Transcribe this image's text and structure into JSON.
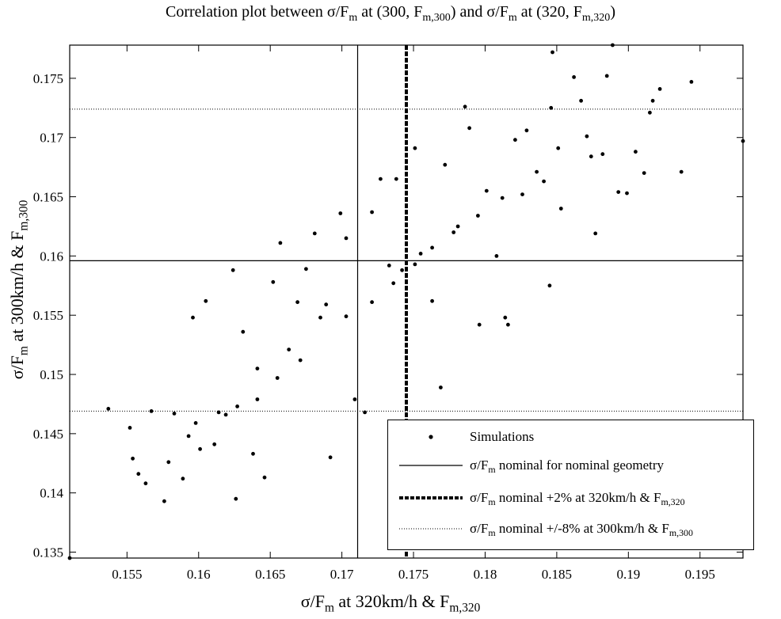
{
  "title": {
    "prefix": "Correlation plot between σ/F",
    "sub1": "m",
    "mid1": " at (300, F",
    "sub2": "m,300",
    "mid2": ") and σ/F",
    "sub3": "m",
    "mid3": " at (320, F",
    "sub4": "m,320",
    "end": ")"
  },
  "xlabel": {
    "a": "σ/F",
    "b": "m",
    "c": " at 320km/h & F",
    "d": "m,320"
  },
  "ylabel": {
    "a": "σ/F",
    "b": "m",
    "c": " at 300km/h & F",
    "d": "m,300"
  },
  "legend": {
    "simulations": "Simulations",
    "nominal": {
      "a": "σ/F",
      "b": "m",
      "c": " nominal for nominal geometry"
    },
    "plus2": {
      "a": "σ/F",
      "b": "m",
      "c": " nominal +2% at 320km/h & F",
      "d": "m,320"
    },
    "pm8": {
      "a": "σ/F",
      "b": "m",
      "c": " nominal +/-8% at 300km/h & F",
      "d": "m,300"
    }
  },
  "chart_data": {
    "type": "scatter",
    "xlim": [
      0.151,
      0.198
    ],
    "ylim": [
      0.1345,
      0.1778
    ],
    "xticks": [
      "0.155",
      "0.16",
      "0.165",
      "0.17",
      "0.175",
      "0.18",
      "0.185",
      "0.19",
      "0.195"
    ],
    "yticks": [
      "0.135",
      "0.14",
      "0.145",
      "0.15",
      "0.155",
      "0.16",
      "0.165",
      "0.17",
      "0.175"
    ],
    "grid": false,
    "legend_position": "bottom-right",
    "reference_lines": {
      "nominal_x": 0.1711,
      "nominal_y": 0.1596,
      "plus2_x": 0.1745,
      "plus8_y": 0.1724,
      "minus8_y": 0.1469
    },
    "series": [
      {
        "name": "Simulations",
        "marker": "dot",
        "color": "#000000",
        "points": [
          [
            0.151,
            0.1345
          ],
          [
            0.1537,
            0.1471
          ],
          [
            0.1552,
            0.1455
          ],
          [
            0.1554,
            0.1429
          ],
          [
            0.1558,
            0.1416
          ],
          [
            0.1563,
            0.1408
          ],
          [
            0.1567,
            0.1469
          ],
          [
            0.1576,
            0.1393
          ],
          [
            0.1579,
            0.1426
          ],
          [
            0.1583,
            0.1467
          ],
          [
            0.1589,
            0.1412
          ],
          [
            0.1593,
            0.1448
          ],
          [
            0.1596,
            0.1548
          ],
          [
            0.1601,
            0.1437
          ],
          [
            0.1605,
            0.1562
          ],
          [
            0.1611,
            0.1441
          ],
          [
            0.1619,
            0.1466
          ],
          [
            0.1624,
            0.1588
          ],
          [
            0.1626,
            0.1395
          ],
          [
            0.1631,
            0.1536
          ],
          [
            0.1638,
            0.1433
          ],
          [
            0.1641,
            0.1505
          ],
          [
            0.1646,
            0.1413
          ],
          [
            0.1652,
            0.1578
          ],
          [
            0.1657,
            0.1611
          ],
          [
            0.1663,
            0.1521
          ],
          [
            0.1669,
            0.1561
          ],
          [
            0.1675,
            0.1589
          ],
          [
            0.1681,
            0.1619
          ],
          [
            0.1689,
            0.1559
          ],
          [
            0.1692,
            0.143
          ],
          [
            0.1699,
            0.1636
          ],
          [
            0.1703,
            0.1615
          ],
          [
            0.1709,
            0.1479
          ],
          [
            0.1716,
            0.1468
          ],
          [
            0.1721,
            0.1637
          ],
          [
            0.1727,
            0.1665
          ],
          [
            0.1733,
            0.1592
          ],
          [
            0.1738,
            0.1665
          ],
          [
            0.1742,
            0.1588
          ],
          [
            0.1751,
            0.1691
          ],
          [
            0.1755,
            0.1602
          ],
          [
            0.1763,
            0.1562
          ],
          [
            0.1769,
            0.1489
          ],
          [
            0.1772,
            0.1677
          ],
          [
            0.1778,
            0.162
          ],
          [
            0.1786,
            0.1726
          ],
          [
            0.1789,
            0.1708
          ],
          [
            0.1796,
            0.1542
          ],
          [
            0.1801,
            0.1655
          ],
          [
            0.1808,
            0.16
          ],
          [
            0.1814,
            0.1548
          ],
          [
            0.1816,
            0.1542
          ],
          [
            0.1821,
            0.1698
          ],
          [
            0.1829,
            0.1706
          ],
          [
            0.1836,
            0.1671
          ],
          [
            0.1841,
            0.1663
          ],
          [
            0.1845,
            0.1575
          ],
          [
            0.1846,
            0.1725
          ],
          [
            0.1847,
            0.1772
          ],
          [
            0.1851,
            0.1691
          ],
          [
            0.1853,
            0.164
          ],
          [
            0.1862,
            0.1751
          ],
          [
            0.1867,
            0.1731
          ],
          [
            0.1871,
            0.1701
          ],
          [
            0.1874,
            0.1684
          ],
          [
            0.1877,
            0.1619
          ],
          [
            0.1882,
            0.1686
          ],
          [
            0.1885,
            0.1752
          ],
          [
            0.1889,
            0.1778
          ],
          [
            0.1893,
            0.1654
          ],
          [
            0.1899,
            0.1653
          ],
          [
            0.1905,
            0.1688
          ],
          [
            0.1911,
            0.167
          ],
          [
            0.1915,
            0.1721
          ],
          [
            0.1917,
            0.1731
          ],
          [
            0.1922,
            0.1741
          ],
          [
            0.1937,
            0.1671
          ],
          [
            0.1944,
            0.1747
          ],
          [
            0.198,
            0.1697
          ],
          [
            0.1685,
            0.1548
          ],
          [
            0.1671,
            0.1512
          ],
          [
            0.1655,
            0.1497
          ],
          [
            0.1703,
            0.1549
          ],
          [
            0.1721,
            0.1561
          ],
          [
            0.1736,
            0.1577
          ],
          [
            0.1751,
            0.1593
          ],
          [
            0.1763,
            0.1607
          ],
          [
            0.1781,
            0.1625
          ],
          [
            0.1795,
            0.1634
          ],
          [
            0.1812,
            0.1649
          ],
          [
            0.1826,
            0.1652
          ],
          [
            0.1641,
            0.1479
          ],
          [
            0.1627,
            0.1473
          ],
          [
            0.1614,
            0.1468
          ],
          [
            0.1598,
            0.1459
          ]
        ]
      }
    ]
  }
}
